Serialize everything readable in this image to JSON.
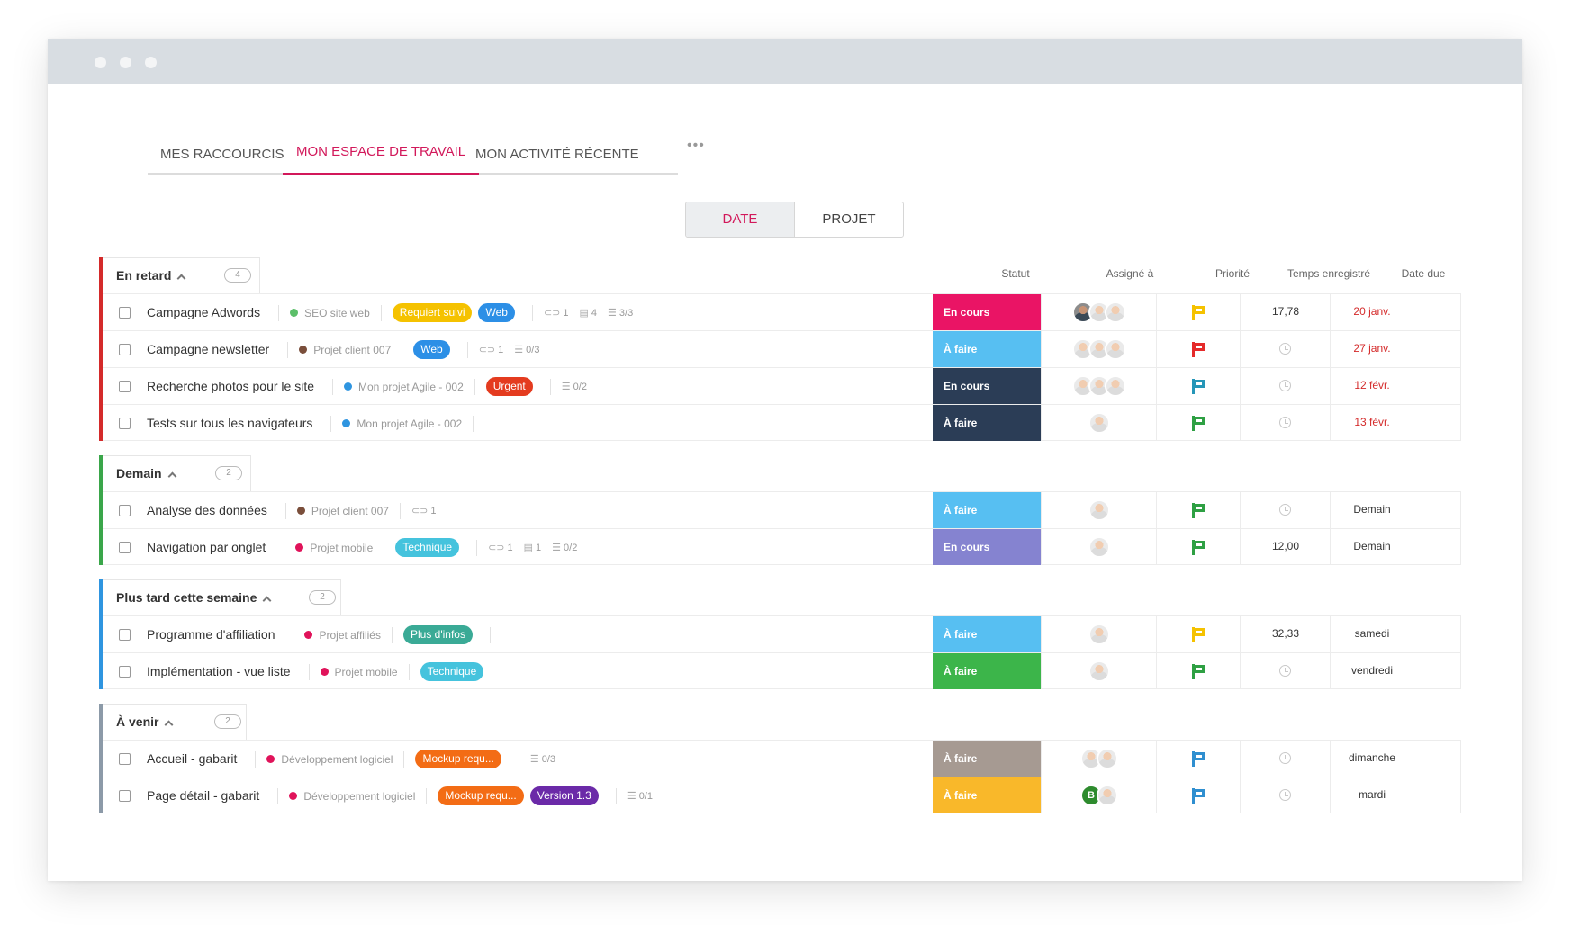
{
  "tabs": [
    {
      "label": "MES RACCOURCIS",
      "active": false
    },
    {
      "label": "MON ESPACE DE TRAVAIL",
      "active": true
    },
    {
      "label": "MON ACTIVITÉ RÉCENTE",
      "active": false
    }
  ],
  "more_label": "•••",
  "view_toggle": {
    "date": "DATE",
    "project": "PROJET",
    "selected": "DATE"
  },
  "columns": {
    "status": "Statut",
    "assigned": "Assigné à",
    "priority": "Priorité",
    "time": "Temps enregistré",
    "due": "Date due"
  },
  "colors": {
    "accent": "#d2185a",
    "late": "#d42a2a",
    "tomorrow": "#3aa64a",
    "later": "#2f95e0",
    "upcoming": "#8c9aa8"
  },
  "sections": [
    {
      "title": "En retard",
      "count": "4",
      "bar_color": "#d42a2a",
      "tasks": [
        {
          "name": "Campagne Adwords",
          "project": "SEO site web",
          "project_color": "#5cbf6a",
          "tags": [
            {
              "label": "Requiert suivi",
              "color": "#f5c200"
            },
            {
              "label": "Web",
              "color": "#2c8fe6"
            }
          ],
          "links": "1",
          "comments": "4",
          "checklist": "3/3",
          "status": "En cours",
          "status_color": "#ea1465",
          "assignees": [
            "dk",
            "",
            ""
          ],
          "priority_color": "#f5c200",
          "time": "17,78",
          "due": "20 janv.",
          "due_color": "#d42a2a"
        },
        {
          "name": "Campagne newsletter",
          "project": "Projet client 007",
          "project_color": "#7a4e3b",
          "tags": [
            {
              "label": "Web",
              "color": "#2c8fe6"
            }
          ],
          "links": "1",
          "comments": "",
          "checklist": "0/3",
          "status": "À faire",
          "status_color": "#57bff2",
          "assignees": [
            "",
            "",
            ""
          ],
          "priority_color": "#e52a2a",
          "time": "",
          "due": "27 janv.",
          "due_color": "#d42a2a"
        },
        {
          "name": "Recherche photos pour le site",
          "project": "Mon projet Agile - 002",
          "project_color": "#2f95e0",
          "tags": [
            {
              "label": "Urgent",
              "color": "#e43b1f"
            }
          ],
          "links": "",
          "comments": "",
          "checklist": "0/2",
          "status": "En cours",
          "status_color": "#2b3d56",
          "assignees": [
            "",
            "",
            ""
          ],
          "priority_color": "#2596b8",
          "time": "",
          "due": "12 févr.",
          "due_color": "#d42a2a"
        },
        {
          "name": "Tests sur tous les navigateurs",
          "project": "Mon projet Agile - 002",
          "project_color": "#2f95e0",
          "tags": [],
          "links": "",
          "comments": "",
          "checklist": "",
          "status": "À faire",
          "status_color": "#2b3d56",
          "assignees": [
            ""
          ],
          "priority_color": "#2ea043",
          "time": "",
          "due": "13 févr.",
          "due_color": "#d42a2a"
        }
      ]
    },
    {
      "title": "Demain",
      "count": "2",
      "bar_color": "#3aa64a",
      "tasks": [
        {
          "name": "Analyse des données",
          "project": "Projet client 007",
          "project_color": "#7a4e3b",
          "tags": [],
          "links": "1",
          "comments": "",
          "checklist": "",
          "status": "À faire",
          "status_color": "#57bff2",
          "assignees": [
            ""
          ],
          "priority_color": "#2ea043",
          "time": "",
          "due": "Demain",
          "due_color": "#333333"
        },
        {
          "name": "Navigation par onglet",
          "project": "Projet mobile",
          "project_color": "#e0135a",
          "tags": [
            {
              "label": "Technique",
              "color": "#45c3dd"
            }
          ],
          "links": "1",
          "comments": "1",
          "checklist": "0/2",
          "status": "En cours",
          "status_color": "#8583d0",
          "assignees": [
            ""
          ],
          "priority_color": "#2ea043",
          "time": "12,00",
          "due": "Demain",
          "due_color": "#333333"
        }
      ]
    },
    {
      "title": "Plus tard cette semaine",
      "count": "2",
      "bar_color": "#2f95e0",
      "tasks": [
        {
          "name": "Programme d'affiliation",
          "project": "Projet affiliés",
          "project_color": "#e0135a",
          "tags": [
            {
              "label": "Plus d'infos",
              "color": "#3aaa96"
            }
          ],
          "links": "",
          "comments": "",
          "checklist": "",
          "status": "À faire",
          "status_color": "#57bff2",
          "assignees": [
            ""
          ],
          "priority_color": "#f5c200",
          "time": "32,33",
          "due": "samedi",
          "due_color": "#333333"
        },
        {
          "name": "Implémentation - vue liste",
          "project": "Projet mobile",
          "project_color": "#e0135a",
          "tags": [
            {
              "label": "Technique",
              "color": "#45c3dd"
            }
          ],
          "links": "",
          "comments": "",
          "checklist": "",
          "status": "À faire",
          "status_color": "#3cb54a",
          "assignees": [
            ""
          ],
          "priority_color": "#2ea043",
          "time": "",
          "due": "vendredi",
          "due_color": "#333333"
        }
      ]
    },
    {
      "title": "À venir",
      "count": "2",
      "bar_color": "#8c9aa8",
      "tasks": [
        {
          "name": "Accueil - gabarit",
          "project": "Développement logiciel",
          "project_color": "#e0135a",
          "tags": [
            {
              "label": "Mockup requ...",
              "color": "#f36c15"
            }
          ],
          "links": "",
          "comments": "",
          "checklist": "0/3",
          "status": "À faire",
          "status_color": "#a69a92",
          "assignees": [
            "",
            ""
          ],
          "priority_color": "#2f8fd0",
          "time": "",
          "due": "dimanche",
          "due_color": "#333333"
        },
        {
          "name": "Page détail - gabarit",
          "project": "Développement logiciel",
          "project_color": "#e0135a",
          "tags": [
            {
              "label": "Mockup requ...",
              "color": "#f36c15"
            },
            {
              "label": "Version 1.3",
              "color": "#6b2aa8"
            }
          ],
          "links": "",
          "comments": "",
          "checklist": "0/1",
          "status": "À faire",
          "status_color": "#f9b82a",
          "assignees": [
            "B",
            ""
          ],
          "priority_color": "#2f8fd0",
          "time": "",
          "due": "mardi",
          "due_color": "#333333"
        }
      ]
    }
  ]
}
